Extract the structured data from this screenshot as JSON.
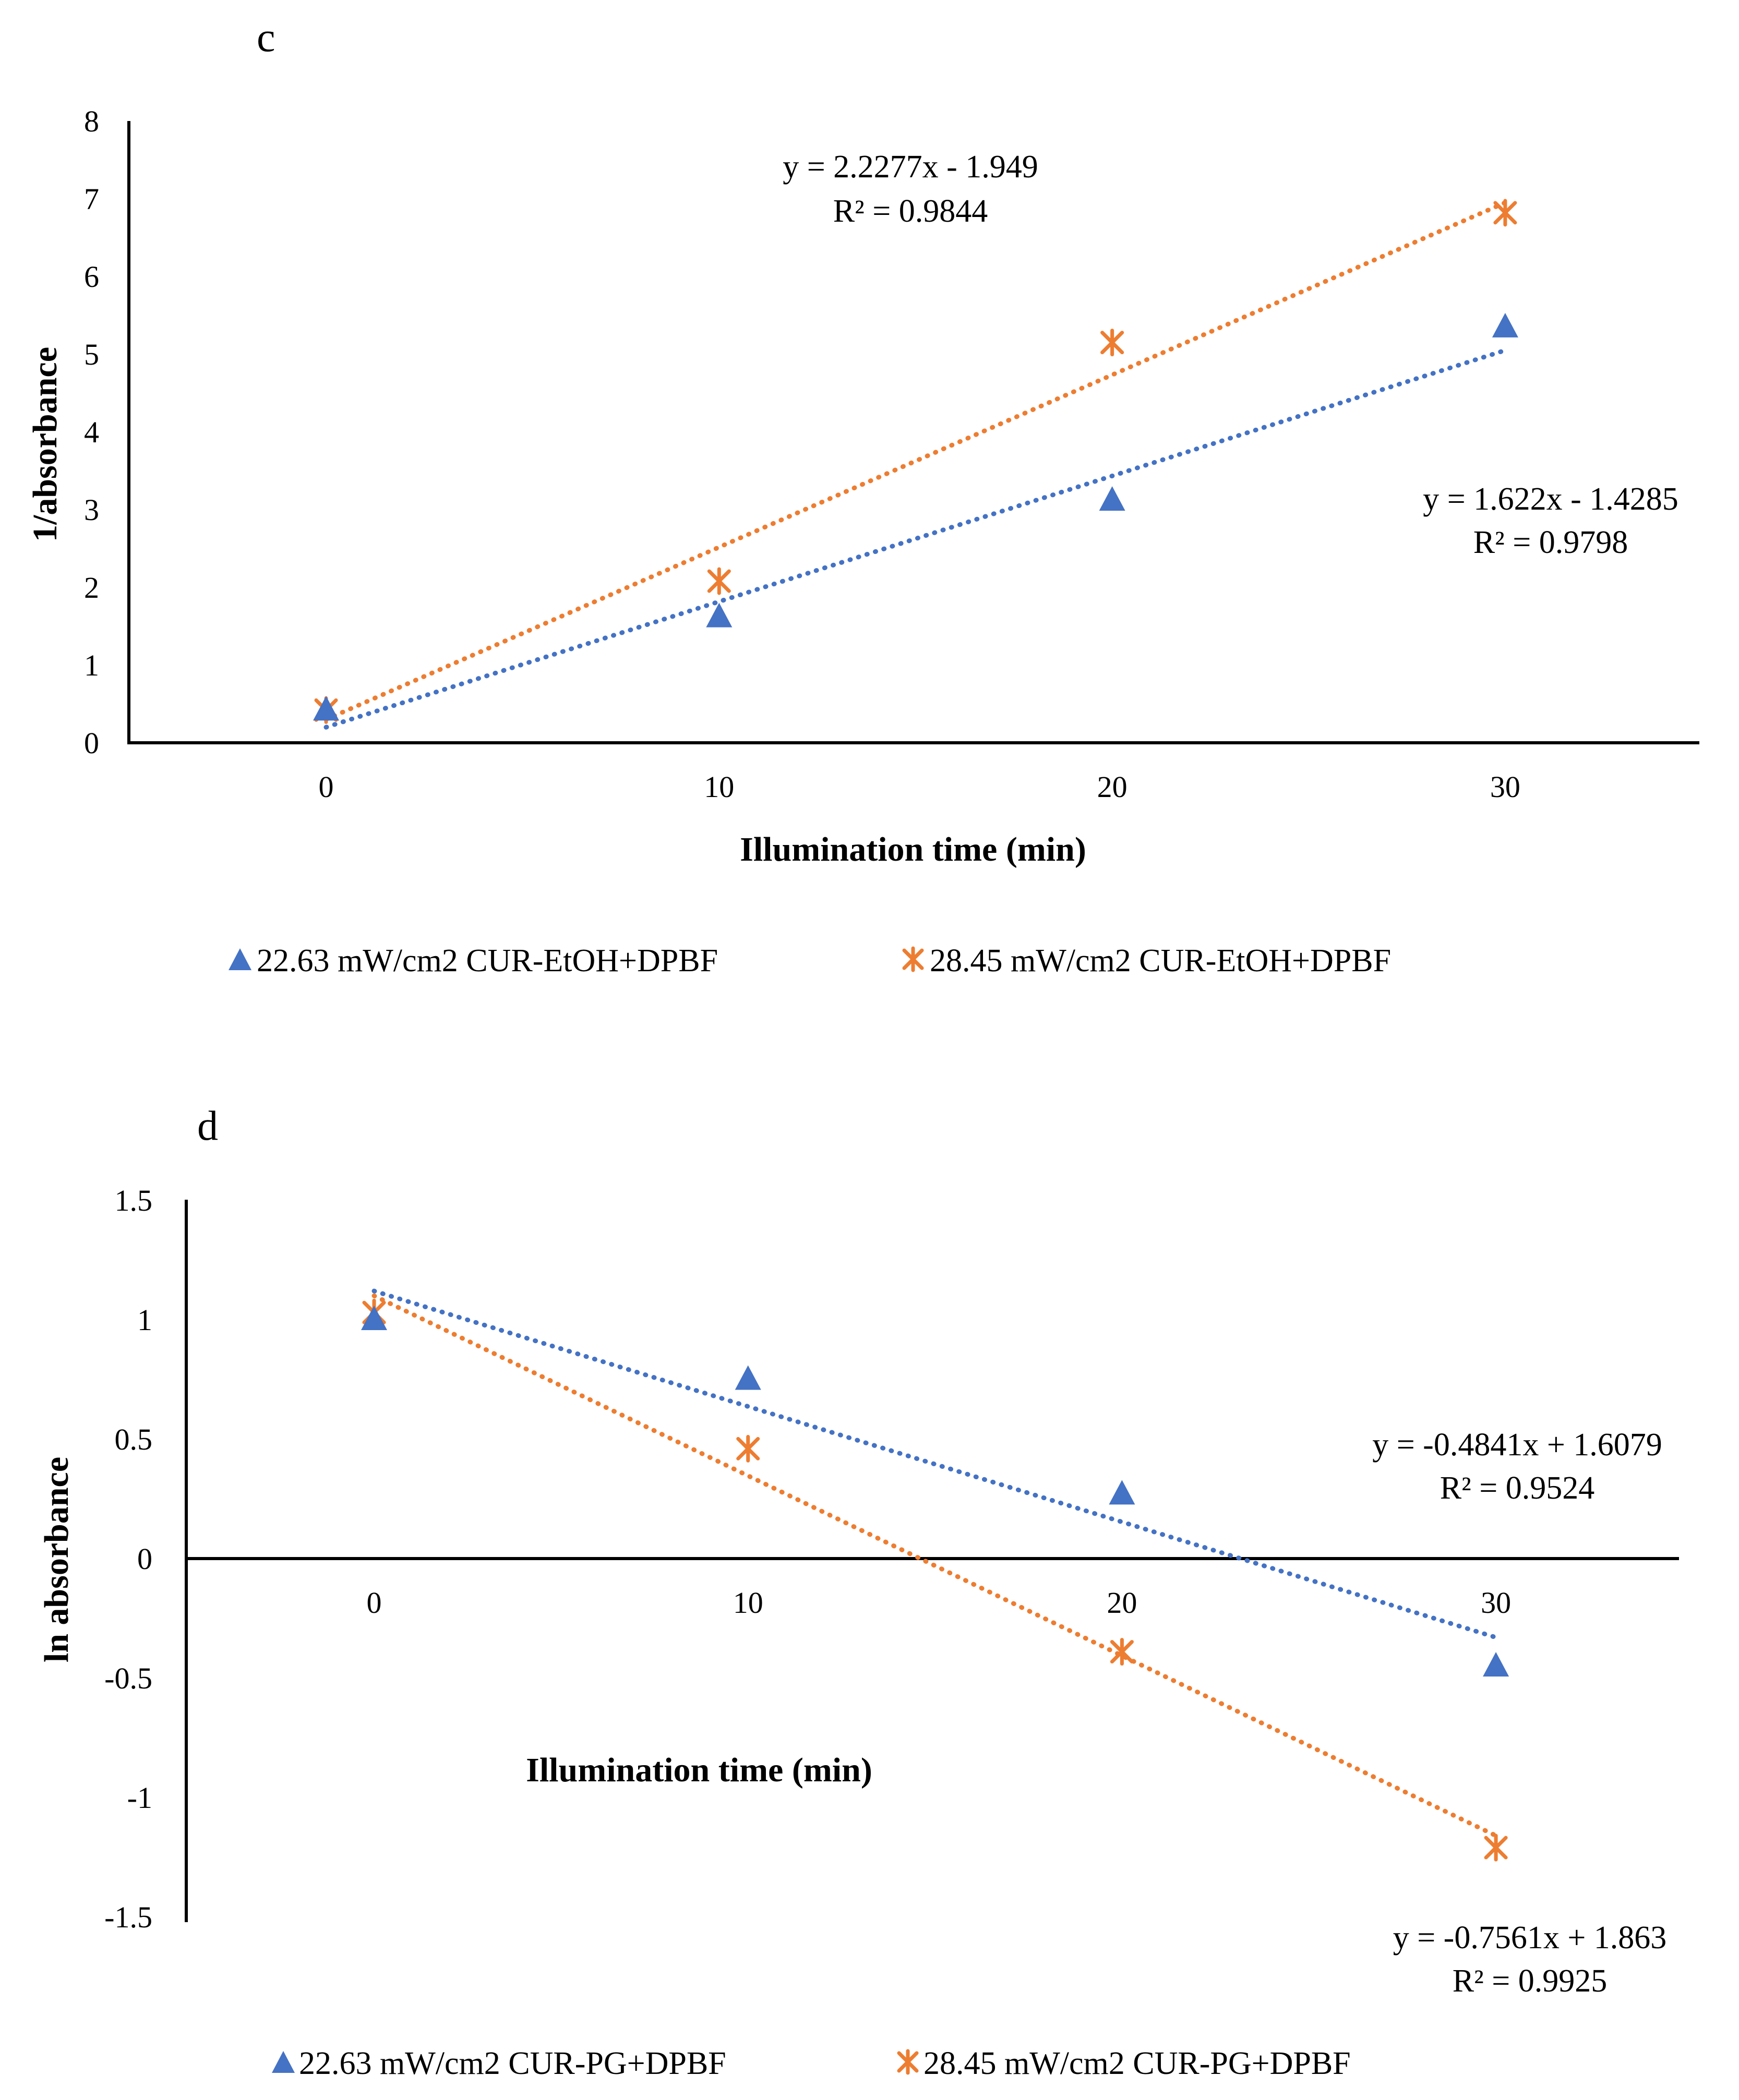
{
  "chart_data": [
    {
      "type": "scatter",
      "panel_label": "c",
      "title": "",
      "xlabel": "Illumination time (min)",
      "ylabel": "1/absorbance",
      "xlim": [
        -5,
        35
      ],
      "ylim": [
        0,
        8
      ],
      "x_ticks": [
        0,
        10,
        20,
        30
      ],
      "x_tick_labels": [
        "0",
        "10",
        "20",
        "30"
      ],
      "y_ticks": [
        0,
        1,
        2,
        3,
        4,
        5,
        6,
        7,
        8
      ],
      "y_tick_labels": [
        "0",
        "1",
        "2",
        "3",
        "4",
        "5",
        "6",
        "7",
        "8"
      ],
      "grid": false,
      "legend_position": "bottom",
      "series": [
        {
          "name": "22.63 mW/cm2 CUR-EtOH+DPBF",
          "marker": "triangle",
          "color": "#4472C4",
          "x": [
            0,
            10,
            20,
            30
          ],
          "y": [
            0.42,
            1.62,
            3.12,
            5.35
          ],
          "trendline": {
            "from": [
              0,
              0.2
            ],
            "to": [
              30,
              5.05
            ]
          },
          "equation": "y = 1.622x - 1.4285",
          "r2": "R² = 0.9798"
        },
        {
          "name": "28.45 mW/cm2 CUR-EtOH+DPBF",
          "marker": "x-star",
          "color": "#ED7D31",
          "x": [
            0,
            10,
            20,
            30
          ],
          "y": [
            0.42,
            2.08,
            5.15,
            6.82
          ],
          "trendline": {
            "from": [
              0,
              0.3
            ],
            "to": [
              30,
              6.95
            ]
          },
          "equation": "y = 2.2277x - 1.949",
          "r2": "R² = 0.9844"
        }
      ]
    },
    {
      "type": "scatter",
      "panel_label": "d",
      "title": "",
      "xlabel": "Illumination time (min)",
      "ylabel": "ln absorbance",
      "xlim": [
        -5,
        35
      ],
      "ylim": [
        -1.5,
        1.5
      ],
      "x_ticks": [
        0,
        10,
        20,
        30
      ],
      "x_tick_labels": [
        "0",
        "10",
        "20",
        "30"
      ],
      "y_ticks": [
        -1.5,
        -1,
        -0.5,
        0,
        0.5,
        1,
        1.5
      ],
      "y_tick_labels": [
        "-1.5",
        "-1",
        "-0.5",
        "0",
        "0.5",
        "1",
        "1.5"
      ],
      "grid": false,
      "legend_position": "bottom",
      "series": [
        {
          "name": "22.63 mW/cm2 CUR-PG+DPBF",
          "marker": "triangle",
          "color": "#4472C4",
          "x": [
            0,
            10,
            20,
            30
          ],
          "y": [
            1.0,
            0.75,
            0.27,
            -0.45
          ],
          "trendline": {
            "from": [
              0,
              1.12
            ],
            "to": [
              30,
              -0.33
            ]
          },
          "equation": "y = -0.4841x + 1.6079",
          "r2": "R² = 0.9524"
        },
        {
          "name": "28.45 mW/cm2 CUR-PG+DPBF",
          "marker": "x-star",
          "color": "#ED7D31",
          "x": [
            0,
            10,
            20,
            30
          ],
          "y": [
            1.03,
            0.46,
            -0.39,
            -1.21
          ],
          "trendline": {
            "from": [
              0,
              1.1
            ],
            "to": [
              30,
              -1.16
            ]
          },
          "equation": "y = -0.7561x + 1.863",
          "r2": "R² = 0.9925"
        }
      ]
    }
  ]
}
